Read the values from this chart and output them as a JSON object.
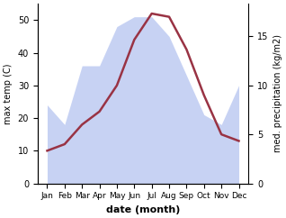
{
  "months": [
    "Jan",
    "Feb",
    "Mar",
    "Apr",
    "May",
    "Jun",
    "Jul",
    "Aug",
    "Sep",
    "Oct",
    "Nov",
    "Dec"
  ],
  "precip": [
    8,
    6,
    12,
    12,
    16,
    17,
    17,
    15,
    11,
    7,
    6,
    10
  ],
  "temp_line": [
    10,
    12,
    18,
    22,
    30,
    44,
    52,
    51,
    41,
    27,
    15,
    13
  ],
  "ylim_temp": [
    0,
    55
  ],
  "ylim_precip": [
    0,
    18.33
  ],
  "yticks_temp": [
    0,
    10,
    20,
    30,
    40,
    50
  ],
  "yticks_precip": [
    0,
    5,
    10,
    15
  ],
  "fill_color": "#aabbee",
  "fill_alpha": 0.65,
  "line_color": "#993344",
  "line_width": 1.8,
  "xlabel": "date (month)",
  "ylabel_left": "max temp (C)",
  "ylabel_right": "med. precipitation (kg/m2)",
  "figsize": [
    3.18,
    2.42
  ],
  "dpi": 100
}
